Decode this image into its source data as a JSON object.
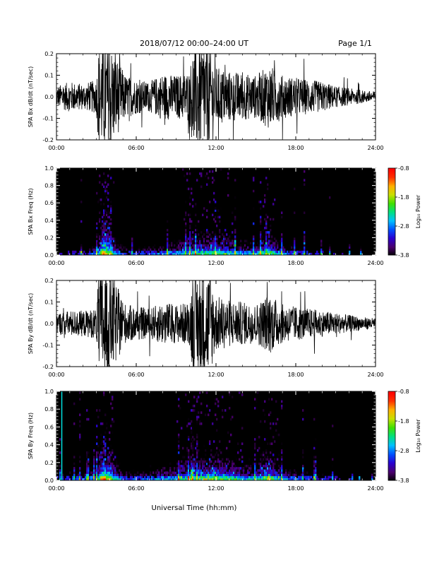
{
  "header": {
    "date_range": "2018/07/12  00:00–24:00 UT",
    "page": "Page 1/1"
  },
  "x_axis": {
    "label": "Universal Time (hh:mm)",
    "tick_labels": [
      "00:00",
      "06:00",
      "12:00",
      "18:00",
      "24:00"
    ],
    "range_hours": [
      0,
      24
    ]
  },
  "colorbar": {
    "label": "Log₁₀ Power",
    "tick_labels": [
      "-0.8",
      "-1.8",
      "-2.8",
      "-3.8"
    ],
    "range": [
      -3.8,
      -0.8
    ],
    "colors": [
      "#000000",
      "#4b006e",
      "#2a00d0",
      "#0050ff",
      "#00c0ff",
      "#00e080",
      "#40e000",
      "#c8e000",
      "#ffb000",
      "#ff3000",
      "#ff0000"
    ]
  },
  "chart_data": [
    {
      "type": "line",
      "ylabel": "SPA Bx dB/dt (nT/sec)",
      "ylim": [
        -0.2,
        0.2
      ],
      "y_tick_labels": [
        "-0.2",
        "-0.1",
        "0.0",
        "0.1",
        "0.2"
      ],
      "x_unit": "hours UT",
      "series": [
        {
          "x": [
            0,
            1,
            2,
            3,
            3.2,
            4,
            5.2,
            6,
            7,
            8,
            9,
            10,
            10.3,
            11.5,
            12,
            13,
            14,
            15,
            16,
            17,
            18,
            19,
            20,
            21,
            22,
            23,
            24
          ],
          "amplitude": [
            0.05,
            0.07,
            0.06,
            0.08,
            0.25,
            0.25,
            0.1,
            0.08,
            0.07,
            0.11,
            0.1,
            0.12,
            0.25,
            0.25,
            0.14,
            0.12,
            0.11,
            0.1,
            0.15,
            0.1,
            0.09,
            0.08,
            0.07,
            0.05,
            0.04,
            0.03,
            0.025
          ]
        }
      ]
    },
    {
      "type": "heatmap",
      "ylabel": "SPA Bx Freq (Hz)",
      "ylim": [
        0,
        1.0
      ],
      "y_tick_labels": [
        "0.0",
        "0.2",
        "0.4",
        "0.6",
        "0.8",
        "1.0"
      ],
      "x_unit": "hours UT",
      "activity": {
        "x": [
          0,
          1,
          2,
          3,
          3.5,
          4,
          4.5,
          5,
          6,
          7,
          8,
          9,
          10,
          11,
          12,
          13,
          14,
          15,
          16,
          16.5,
          17,
          18,
          19,
          20,
          21,
          22,
          23,
          24
        ],
        "level": [
          0.25,
          0.3,
          0.3,
          0.5,
          1.0,
          0.9,
          0.55,
          0.4,
          0.35,
          0.45,
          0.5,
          0.55,
          0.65,
          0.7,
          0.75,
          0.65,
          0.55,
          0.55,
          0.8,
          0.6,
          0.5,
          0.4,
          0.35,
          0.3,
          0.25,
          0.2,
          0.15,
          0.15
        ]
      },
      "log10_power_range": [
        -3.8,
        -0.8
      ]
    },
    {
      "type": "line",
      "ylabel": "SPA By dB/dt (nT/sec)",
      "ylim": [
        -0.2,
        0.2
      ],
      "y_tick_labels": [
        "-0.2",
        "-0.1",
        "0.0",
        "0.1",
        "0.2"
      ],
      "x_unit": "hours UT",
      "series": [
        {
          "x": [
            0,
            1,
            2,
            3,
            3.2,
            4,
            5.2,
            6,
            7,
            8,
            9,
            10,
            10.3,
            11.5,
            12,
            13,
            14,
            15,
            16,
            17,
            18,
            19,
            20,
            21,
            22,
            23,
            24
          ],
          "amplitude": [
            0.05,
            0.06,
            0.06,
            0.07,
            0.25,
            0.25,
            0.09,
            0.08,
            0.07,
            0.1,
            0.09,
            0.1,
            0.25,
            0.25,
            0.13,
            0.11,
            0.1,
            0.09,
            0.14,
            0.09,
            0.08,
            0.07,
            0.06,
            0.05,
            0.04,
            0.03,
            0.025
          ]
        }
      ]
    },
    {
      "type": "heatmap",
      "ylabel": "SPA By Freq (Hz)",
      "ylim": [
        0,
        1.0
      ],
      "y_tick_labels": [
        "0.0",
        "0.2",
        "0.4",
        "0.6",
        "0.8",
        "1.0"
      ],
      "x_unit": "hours UT",
      "activity": {
        "x": [
          0,
          1,
          2,
          3,
          3.5,
          4,
          4.5,
          5,
          6,
          7,
          8,
          9,
          10,
          11,
          12,
          13,
          14,
          15,
          16,
          16.5,
          17,
          18,
          19,
          20,
          21,
          22,
          23,
          24
        ],
        "level": [
          0.35,
          0.4,
          0.4,
          0.6,
          1.0,
          0.9,
          0.6,
          0.45,
          0.4,
          0.5,
          0.55,
          0.6,
          0.7,
          0.75,
          0.8,
          0.7,
          0.6,
          0.6,
          0.85,
          0.65,
          0.55,
          0.45,
          0.4,
          0.35,
          0.3,
          0.25,
          0.2,
          0.2
        ]
      },
      "log10_power_range": [
        -3.8,
        -0.8
      ],
      "marker_line_hours": 0.4
    }
  ]
}
